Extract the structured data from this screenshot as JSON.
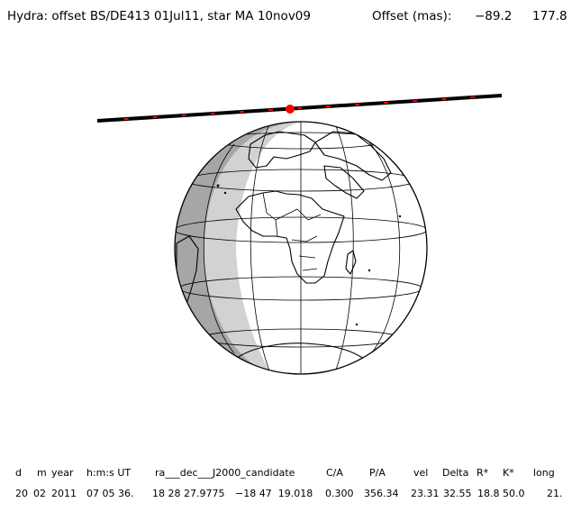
{
  "title": {
    "event": "Hydra: offset BS/DE413 01Jul11, star MA 10nov09",
    "offset_label": "Offset (mas):",
    "offset_x": "−89.2",
    "offset_y": "177.8"
  },
  "colors": {
    "night": "#a6a6a6",
    "twilight": "#d2d2d2",
    "day": "#ffffff",
    "path": "#000000",
    "marker": "#ff0000"
  },
  "table": {
    "headers": {
      "d": "d",
      "m": "m",
      "year": "year",
      "hms": "h:m:s UT",
      "radec": "ra___dec___J2000_candidate",
      "ca": "C/A",
      "pa": "P/A",
      "vel": "vel",
      "delta": "Delta",
      "rstar": "R*",
      "kstar": "K*",
      "long": "long"
    },
    "values": {
      "d": "20",
      "m": "02",
      "year": "2011",
      "hms": "07 05 36.",
      "ra": "18 28 27.9775",
      "dec": "−18 47  19.018",
      "ca": "0.300",
      "pa": "356.34",
      "vel": "23.31",
      "delta": "32.55",
      "rstar": "18.8",
      "kstar": "50.0",
      "long": "21."
    }
  }
}
